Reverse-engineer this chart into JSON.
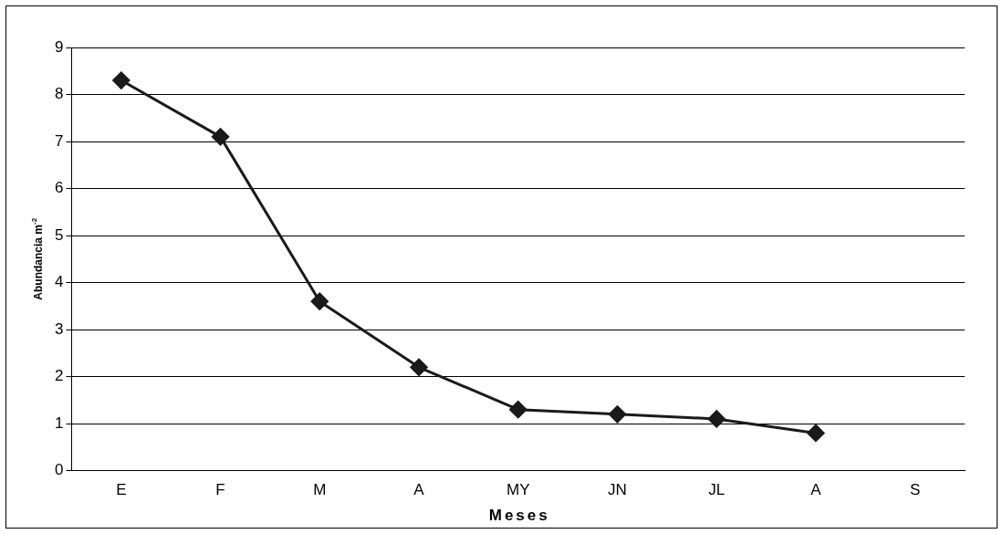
{
  "chart_data": {
    "type": "line",
    "xlabel": "Meses",
    "ylabel": "Abundancia m$^{-2}$",
    "categories": [
      "E",
      "F",
      "M",
      "A",
      "MY",
      "JN",
      "JL",
      "A",
      "S"
    ],
    "series": [
      {
        "color": "#1a1a1a",
        "values": [
          8.3,
          7.1,
          3.6,
          2.2,
          1.3,
          1.2,
          1.1,
          0.8,
          null
        ]
      }
    ],
    "ylim": [
      0,
      9
    ],
    "yticks": [
      0,
      1,
      2,
      3,
      4,
      5,
      6,
      7,
      8,
      9
    ],
    "grid": "y",
    "legend": false,
    "marker": "diamond",
    "line_style": "solid"
  }
}
